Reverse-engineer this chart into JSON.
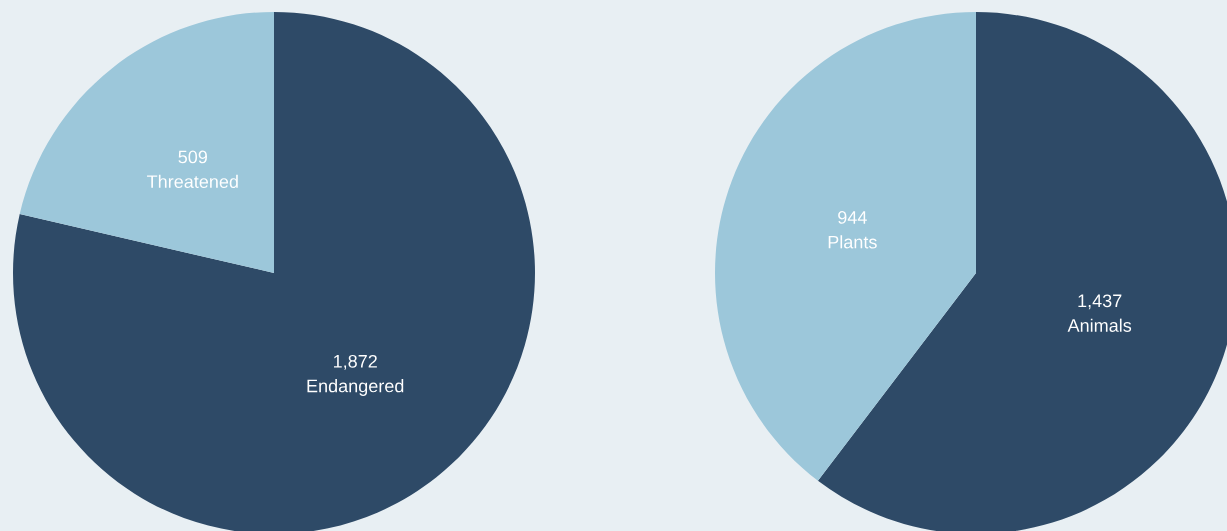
{
  "chart_data": [
    {
      "type": "pie",
      "categories": [
        "Endangered",
        "Threatened"
      ],
      "values": [
        1872,
        509
      ],
      "value_labels": [
        "1,872",
        "509"
      ],
      "colors": [
        "#2e4a67",
        "#9cc7da"
      ]
    },
    {
      "type": "pie",
      "categories": [
        "Animals",
        "Plants"
      ],
      "values": [
        1437,
        944
      ],
      "value_labels": [
        "1,437",
        "944"
      ],
      "colors": [
        "#2e4a67",
        "#9cc7da"
      ]
    }
  ]
}
